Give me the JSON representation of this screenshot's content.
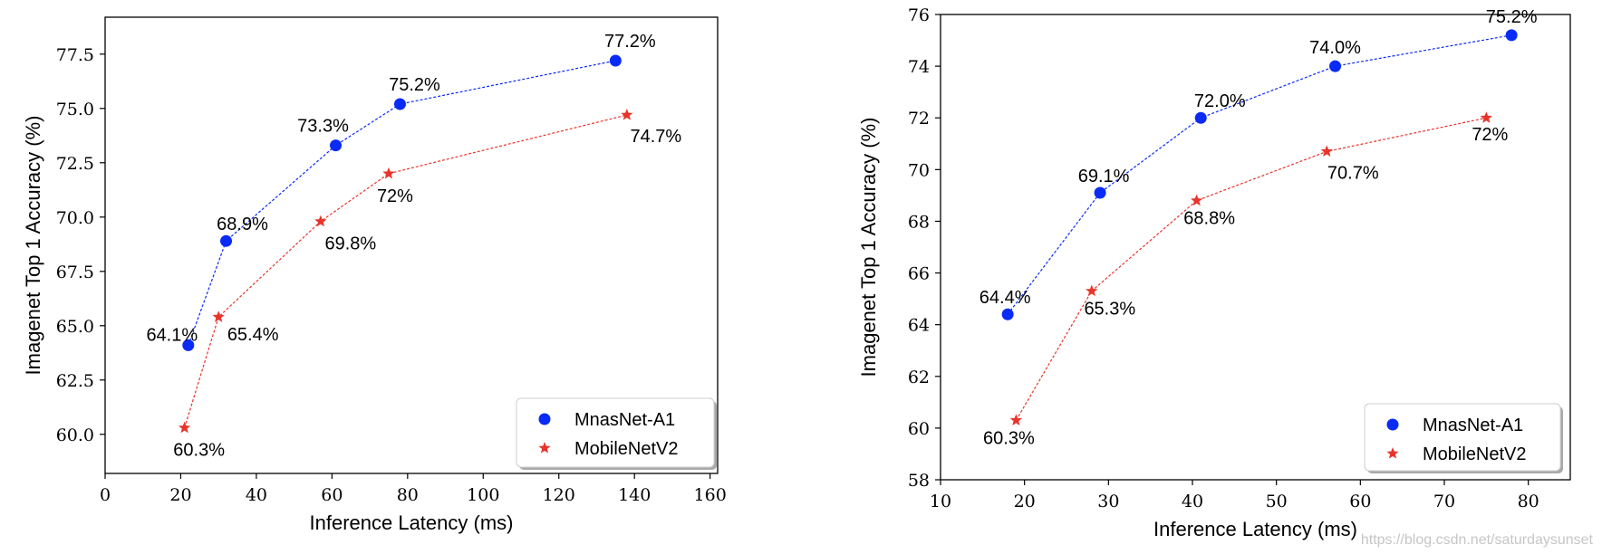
{
  "watermark": "https://blog.csdn.net/saturdaysunset",
  "chart_data": [
    {
      "type": "line",
      "xlabel": "Inference Latency (ms)",
      "ylabel": "Imagenet Top 1 Accuracy (%)",
      "xlim": [
        0,
        162
      ],
      "ylim": [
        58.2,
        79.2
      ],
      "xticks": [
        0,
        20,
        40,
        60,
        80,
        100,
        120,
        140,
        160
      ],
      "xtick_labels": [
        "0",
        "20",
        "40",
        "60",
        "80",
        "100",
        "120",
        "140",
        "160"
      ],
      "yticks": [
        60.0,
        62.5,
        65.0,
        67.5,
        70.0,
        72.5,
        75.0,
        77.5
      ],
      "ytick_labels": [
        "60.0",
        "62.5",
        "65.0",
        "67.5",
        "70.0",
        "72.5",
        "75.0",
        "77.5"
      ],
      "grid": false,
      "legend_position": "bottom-right",
      "series": [
        {
          "name": "MnasNet-A1",
          "marker": "circle",
          "color": "#0a2bf5",
          "points": [
            {
              "x": 22,
              "y": 64.1,
              "label": "64.1%"
            },
            {
              "x": 32,
              "y": 68.9,
              "label": "68.9%"
            },
            {
              "x": 61,
              "y": 73.3,
              "label": "73.3%"
            },
            {
              "x": 78,
              "y": 75.2,
              "label": "75.2%"
            },
            {
              "x": 135,
              "y": 77.2,
              "label": "77.2%"
            }
          ]
        },
        {
          "name": "MobileNetV2",
          "marker": "star",
          "color": "#e8342b",
          "points": [
            {
              "x": 21,
              "y": 60.3,
              "label": "60.3%"
            },
            {
              "x": 30,
              "y": 65.4,
              "label": "65.4%"
            },
            {
              "x": 57,
              "y": 69.8,
              "label": "69.8%"
            },
            {
              "x": 75,
              "y": 72.0,
              "label": "72%"
            },
            {
              "x": 138,
              "y": 74.7,
              "label": "74.7%"
            }
          ]
        }
      ]
    },
    {
      "type": "line",
      "xlabel": "Inference Latency (ms)",
      "ylabel": "Imagenet Top 1 Accuracy (%)",
      "xlim": [
        10,
        85
      ],
      "ylim": [
        58,
        76
      ],
      "xticks": [
        10,
        20,
        30,
        40,
        50,
        60,
        70,
        80
      ],
      "xtick_labels": [
        "10",
        "20",
        "30",
        "40",
        "50",
        "60",
        "70",
        "80"
      ],
      "yticks": [
        58,
        60,
        62,
        64,
        66,
        68,
        70,
        72,
        74,
        76
      ],
      "ytick_labels": [
        "58",
        "60",
        "62",
        "64",
        "66",
        "68",
        "70",
        "72",
        "74",
        "76"
      ],
      "grid": false,
      "legend_position": "bottom-right",
      "series": [
        {
          "name": "MnasNet-A1",
          "marker": "circle",
          "color": "#0a2bf5",
          "points": [
            {
              "x": 18,
              "y": 64.4,
              "label": "64.4%"
            },
            {
              "x": 29,
              "y": 69.1,
              "label": "69.1%"
            },
            {
              "x": 41,
              "y": 72.0,
              "label": "72.0%"
            },
            {
              "x": 57,
              "y": 74.0,
              "label": "74.0%"
            },
            {
              "x": 78,
              "y": 75.2,
              "label": "75.2%"
            }
          ]
        },
        {
          "name": "MobileNetV2",
          "marker": "star",
          "color": "#e8342b",
          "points": [
            {
              "x": 19,
              "y": 60.3,
              "label": "60.3%"
            },
            {
              "x": 28,
              "y": 65.3,
              "label": "65.3%"
            },
            {
              "x": 40.5,
              "y": 68.8,
              "label": "68.8%"
            },
            {
              "x": 56,
              "y": 70.7,
              "label": "70.7%"
            },
            {
              "x": 75,
              "y": 72.0,
              "label": "72%"
            }
          ]
        }
      ]
    }
  ]
}
